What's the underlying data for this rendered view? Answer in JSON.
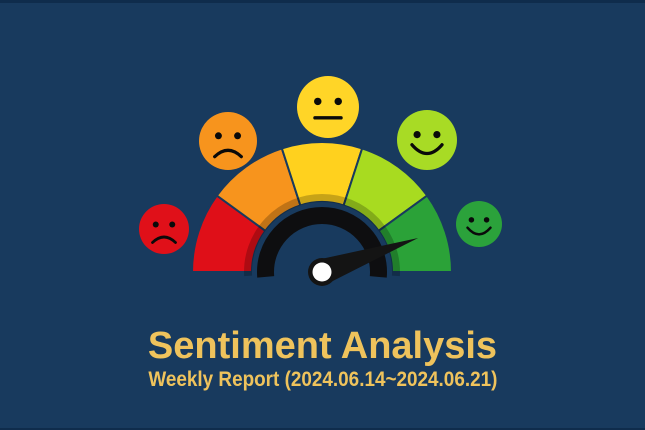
{
  "colors": {
    "background": "#183A5E",
    "edge_strip": "#0F2C4C",
    "title_text": "#EFC35C",
    "subtitle_text": "#EFC35C",
    "inner_arc": "#0E0E10",
    "needle": "#141414",
    "pivot_cap": "#FFFFFF"
  },
  "title": {
    "text": "Sentiment Analysis"
  },
  "subtitle": {
    "text": "Weekly Report (2024.06.14~2024.06.21)"
  },
  "chart_data": {
    "type": "gauge",
    "title": "Sentiment Analysis",
    "subtitle": "Weekly Report (2024.06.14~2024.06.21)",
    "scale_range_pct": [
      0,
      100
    ],
    "segments": [
      {
        "label": "very negative",
        "color": "#DF0F18",
        "start_deg": 180,
        "end_deg": 144
      },
      {
        "label": "negative",
        "color": "#F7941D",
        "start_deg": 144,
        "end_deg": 108
      },
      {
        "label": "neutral",
        "color": "#FFD11E",
        "start_deg": 108,
        "end_deg": 72
      },
      {
        "label": "positive",
        "color": "#A8DB20",
        "start_deg": 72,
        "end_deg": 36
      },
      {
        "label": "very positive",
        "color": "#2BA238",
        "start_deg": 36,
        "end_deg": 0
      }
    ],
    "emojis": [
      {
        "mood": "very-negative",
        "expression": "frown",
        "color": "#E01019"
      },
      {
        "mood": "negative",
        "expression": "frown",
        "color": "#F7941D"
      },
      {
        "mood": "neutral",
        "expression": "neutral",
        "color": "#FFD527"
      },
      {
        "mood": "positive",
        "expression": "smile",
        "color": "#A8DB25"
      },
      {
        "mood": "very-positive",
        "expression": "smile",
        "color": "#2BA23B"
      }
    ],
    "needle": {
      "direction_deg_above_horizontal_right": 19.5,
      "pointing_segment": "very positive",
      "approx_value_pct": 89
    },
    "legend_position": "none",
    "grid": false
  }
}
